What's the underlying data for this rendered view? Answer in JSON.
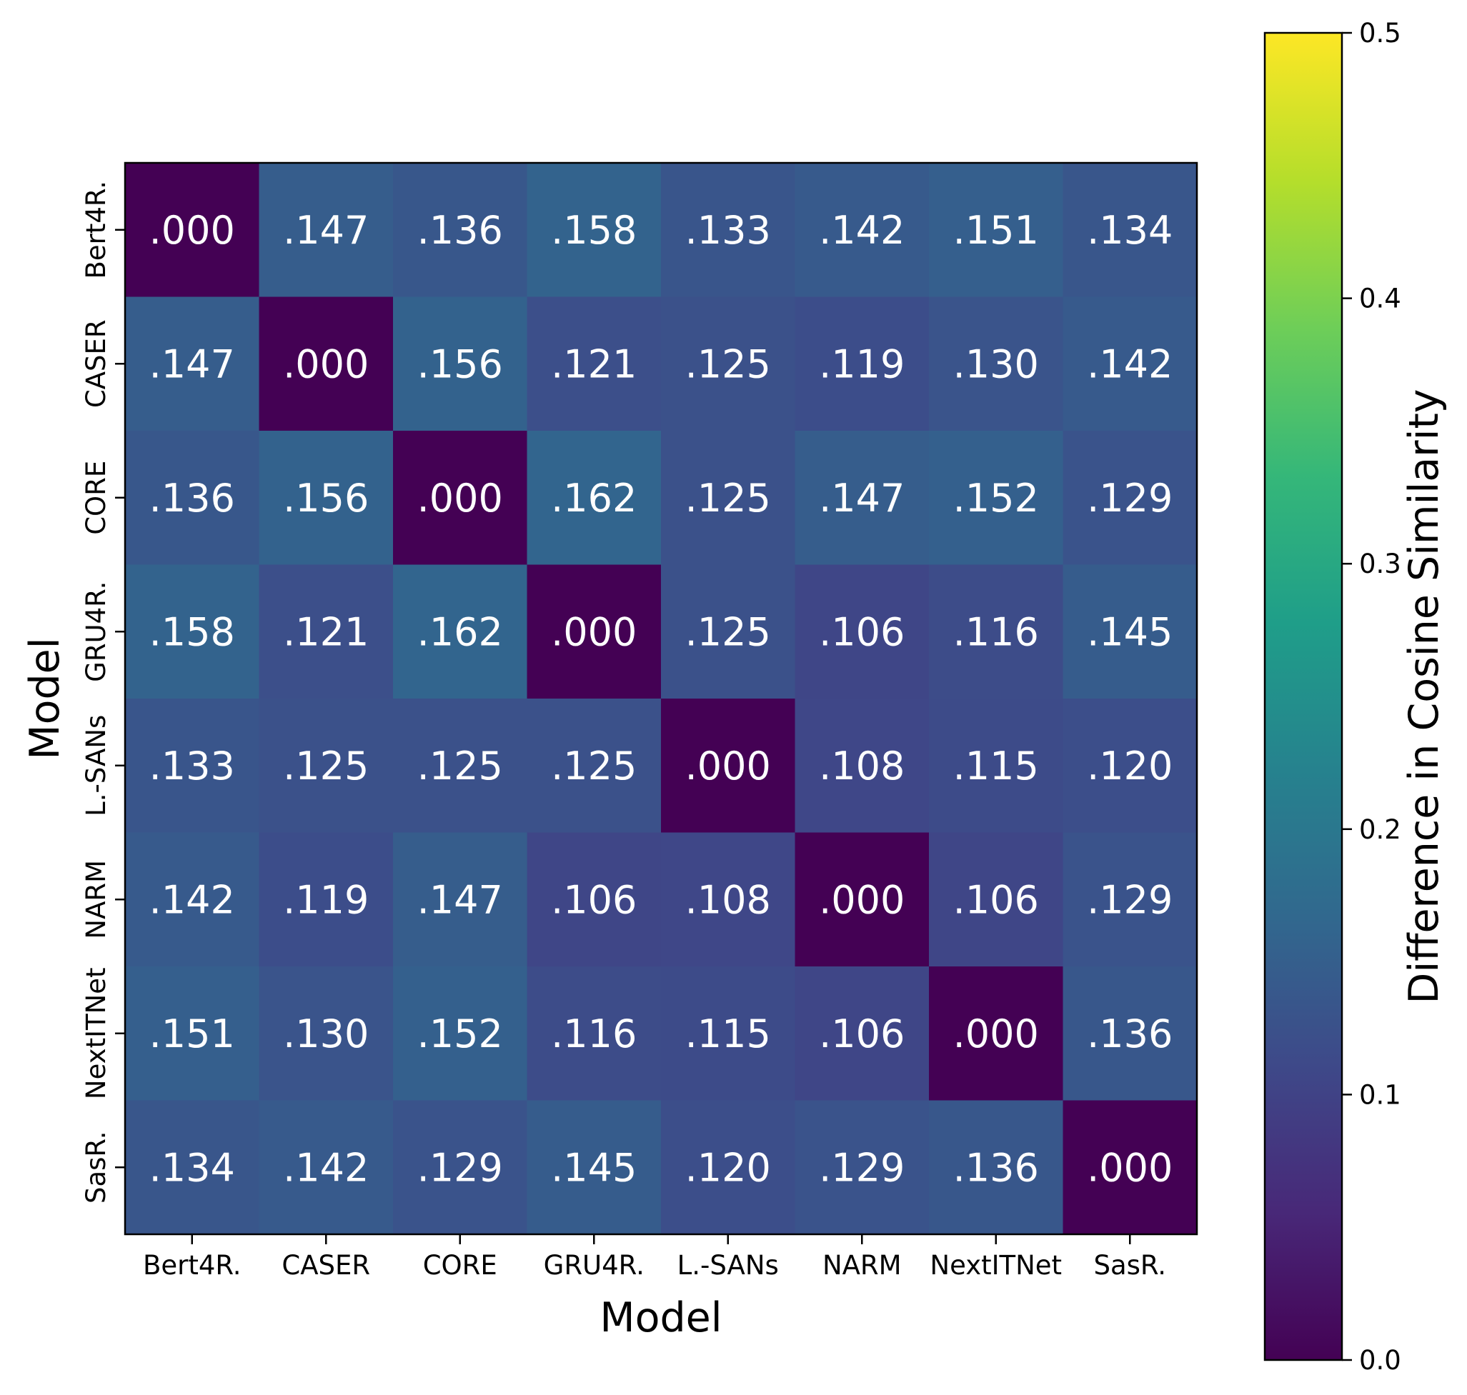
{
  "chart_data": {
    "type": "heatmap",
    "title": "",
    "xlabel": "Model",
    "ylabel": "Model",
    "x_categories": [
      "Bert4R.",
      "CASER",
      "CORE",
      "GRU4R.",
      "L.-SANs",
      "NARM",
      "NextITNet",
      "SasR."
    ],
    "y_categories": [
      "Bert4R.",
      "CASER",
      "CORE",
      "GRU4R.",
      "L.-SANs",
      "NARM",
      "NextITNet",
      "SasR."
    ],
    "values": [
      [
        0.0,
        0.147,
        0.136,
        0.158,
        0.133,
        0.142,
        0.151,
        0.134
      ],
      [
        0.147,
        0.0,
        0.156,
        0.121,
        0.125,
        0.119,
        0.13,
        0.142
      ],
      [
        0.136,
        0.156,
        0.0,
        0.162,
        0.125,
        0.147,
        0.152,
        0.129
      ],
      [
        0.158,
        0.121,
        0.162,
        0.0,
        0.125,
        0.106,
        0.116,
        0.145
      ],
      [
        0.133,
        0.125,
        0.125,
        0.125,
        0.0,
        0.108,
        0.115,
        0.12
      ],
      [
        0.142,
        0.119,
        0.147,
        0.106,
        0.108,
        0.0,
        0.106,
        0.129
      ],
      [
        0.151,
        0.13,
        0.152,
        0.116,
        0.115,
        0.106,
        0.0,
        0.136
      ],
      [
        0.134,
        0.142,
        0.129,
        0.145,
        0.12,
        0.129,
        0.136,
        0.0
      ]
    ],
    "cell_labels": [
      [
        ".000",
        ".147",
        ".136",
        ".158",
        ".133",
        ".142",
        ".151",
        ".134"
      ],
      [
        ".147",
        ".000",
        ".156",
        ".121",
        ".125",
        ".119",
        ".130",
        ".142"
      ],
      [
        ".136",
        ".156",
        ".000",
        ".162",
        ".125",
        ".147",
        ".152",
        ".129"
      ],
      [
        ".158",
        ".121",
        ".162",
        ".000",
        ".125",
        ".106",
        ".116",
        ".145"
      ],
      [
        ".133",
        ".125",
        ".125",
        ".125",
        ".000",
        ".108",
        ".115",
        ".120"
      ],
      [
        ".142",
        ".119",
        ".147",
        ".106",
        ".108",
        ".000",
        ".106",
        ".129"
      ],
      [
        ".151",
        ".130",
        ".152",
        ".116",
        ".115",
        ".106",
        ".000",
        ".136"
      ],
      [
        ".134",
        ".142",
        ".129",
        ".145",
        ".120",
        ".129",
        ".136",
        ".000"
      ]
    ],
    "colorbar": {
      "label": "Difference in Cosine Similarity",
      "range": [
        0.0,
        0.5
      ],
      "ticks": [
        0.0,
        0.1,
        0.2,
        0.3,
        0.4,
        0.5
      ],
      "tick_labels": [
        "0.0",
        "0.1",
        "0.2",
        "0.3",
        "0.4",
        "0.5"
      ],
      "colormap": "viridis"
    },
    "colors": {
      "viridis_stops": [
        "#440154",
        "#482878",
        "#3e4989",
        "#31688e",
        "#26828e",
        "#1f9e89",
        "#35b779",
        "#6ece58",
        "#b5de2b",
        "#fde725"
      ],
      "cell_text": "#ffffff",
      "axis_text": "#000000"
    }
  }
}
